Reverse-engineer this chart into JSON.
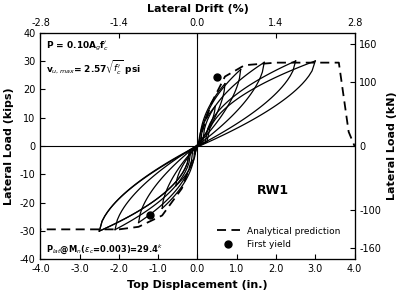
{
  "title_top": "Lateral Drift (%)",
  "xlabel": "Top Displacement (in.)",
  "ylabel_left": "Lateral Load (kips)",
  "ylabel_right": "Lateral Load (kN)",
  "xlim": [
    -4.0,
    4.0
  ],
  "ylim": [
    -40,
    40
  ],
  "xticks": [
    -4,
    -3,
    -2,
    -1,
    0,
    1,
    2,
    3,
    4
  ],
  "xtick_labels": [
    "-4.0",
    "-3.0",
    "-2.0",
    "-1.0",
    "0.0",
    "1.0",
    "2.0",
    "3.0",
    "4.0"
  ],
  "yticks": [
    -40,
    -30,
    -20,
    -10,
    0,
    10,
    20,
    30,
    40
  ],
  "ytick_labels": [
    "-40",
    "-30",
    "-20",
    "-10",
    "0",
    "10",
    "20",
    "30",
    "40"
  ],
  "xticks_top_vals": [
    -4.0,
    -2.0,
    0.0,
    2.0,
    4.0
  ],
  "xticks_top_labels": [
    "-2.8",
    "-1.4",
    "0.0",
    "1.4",
    "2.8"
  ],
  "yticks_right_vals": [
    -35.85,
    -22.41,
    0.0,
    22.41,
    35.85
  ],
  "yticks_right_labels": [
    "-160",
    "-100",
    "0",
    "100",
    "160"
  ],
  "background_color": "#ffffff",
  "line_color": "#000000",
  "conversion_kN": 4.44822,
  "analytical_pos_x": [
    0.0,
    0.35,
    0.7,
    1.2,
    2.0,
    2.8,
    3.6,
    3.85,
    4.0
  ],
  "analytical_pos_y": [
    0.0,
    15.0,
    24.5,
    28.5,
    29.4,
    29.4,
    29.4,
    5.0,
    0.0
  ],
  "analytical_neg_x": [
    0.0,
    -0.4,
    -0.9,
    -1.5,
    -2.0,
    -2.5,
    -3.0,
    -4.0
  ],
  "analytical_neg_y": [
    0.0,
    -15.0,
    -24.5,
    -28.5,
    -29.4,
    -29.4,
    -29.4,
    -29.4
  ],
  "first_yield_pos_x": 0.5,
  "first_yield_pos_y": 24.5,
  "first_yield_neg_x": -1.2,
  "first_yield_neg_y": -24.5,
  "cycles": [
    {
      "xp": 0.45,
      "yp": 14.0,
      "xn": -0.55,
      "yn": -14.0
    },
    {
      "xp": 0.7,
      "yp": 22.0,
      "xn": -0.9,
      "yn": -22.0
    },
    {
      "xp": 1.1,
      "yp": 27.0,
      "xn": -1.5,
      "yn": -27.0
    },
    {
      "xp": 1.7,
      "yp": 29.5,
      "xn": -2.1,
      "yn": -29.5
    },
    {
      "xp": 2.5,
      "yp": 30.0,
      "xn": -2.5,
      "yn": -30.0
    },
    {
      "xp": 3.0,
      "yp": 30.0,
      "xn": -2.5,
      "yn": -30.0
    }
  ],
  "RW1_x": 1.5,
  "RW1_y": -17.0,
  "ann1_x": -3.85,
  "ann1_y": 37.5,
  "ann2_x": -3.85,
  "ann2_y": 31.0,
  "plat_x": -3.85,
  "plat_y": -34.0
}
